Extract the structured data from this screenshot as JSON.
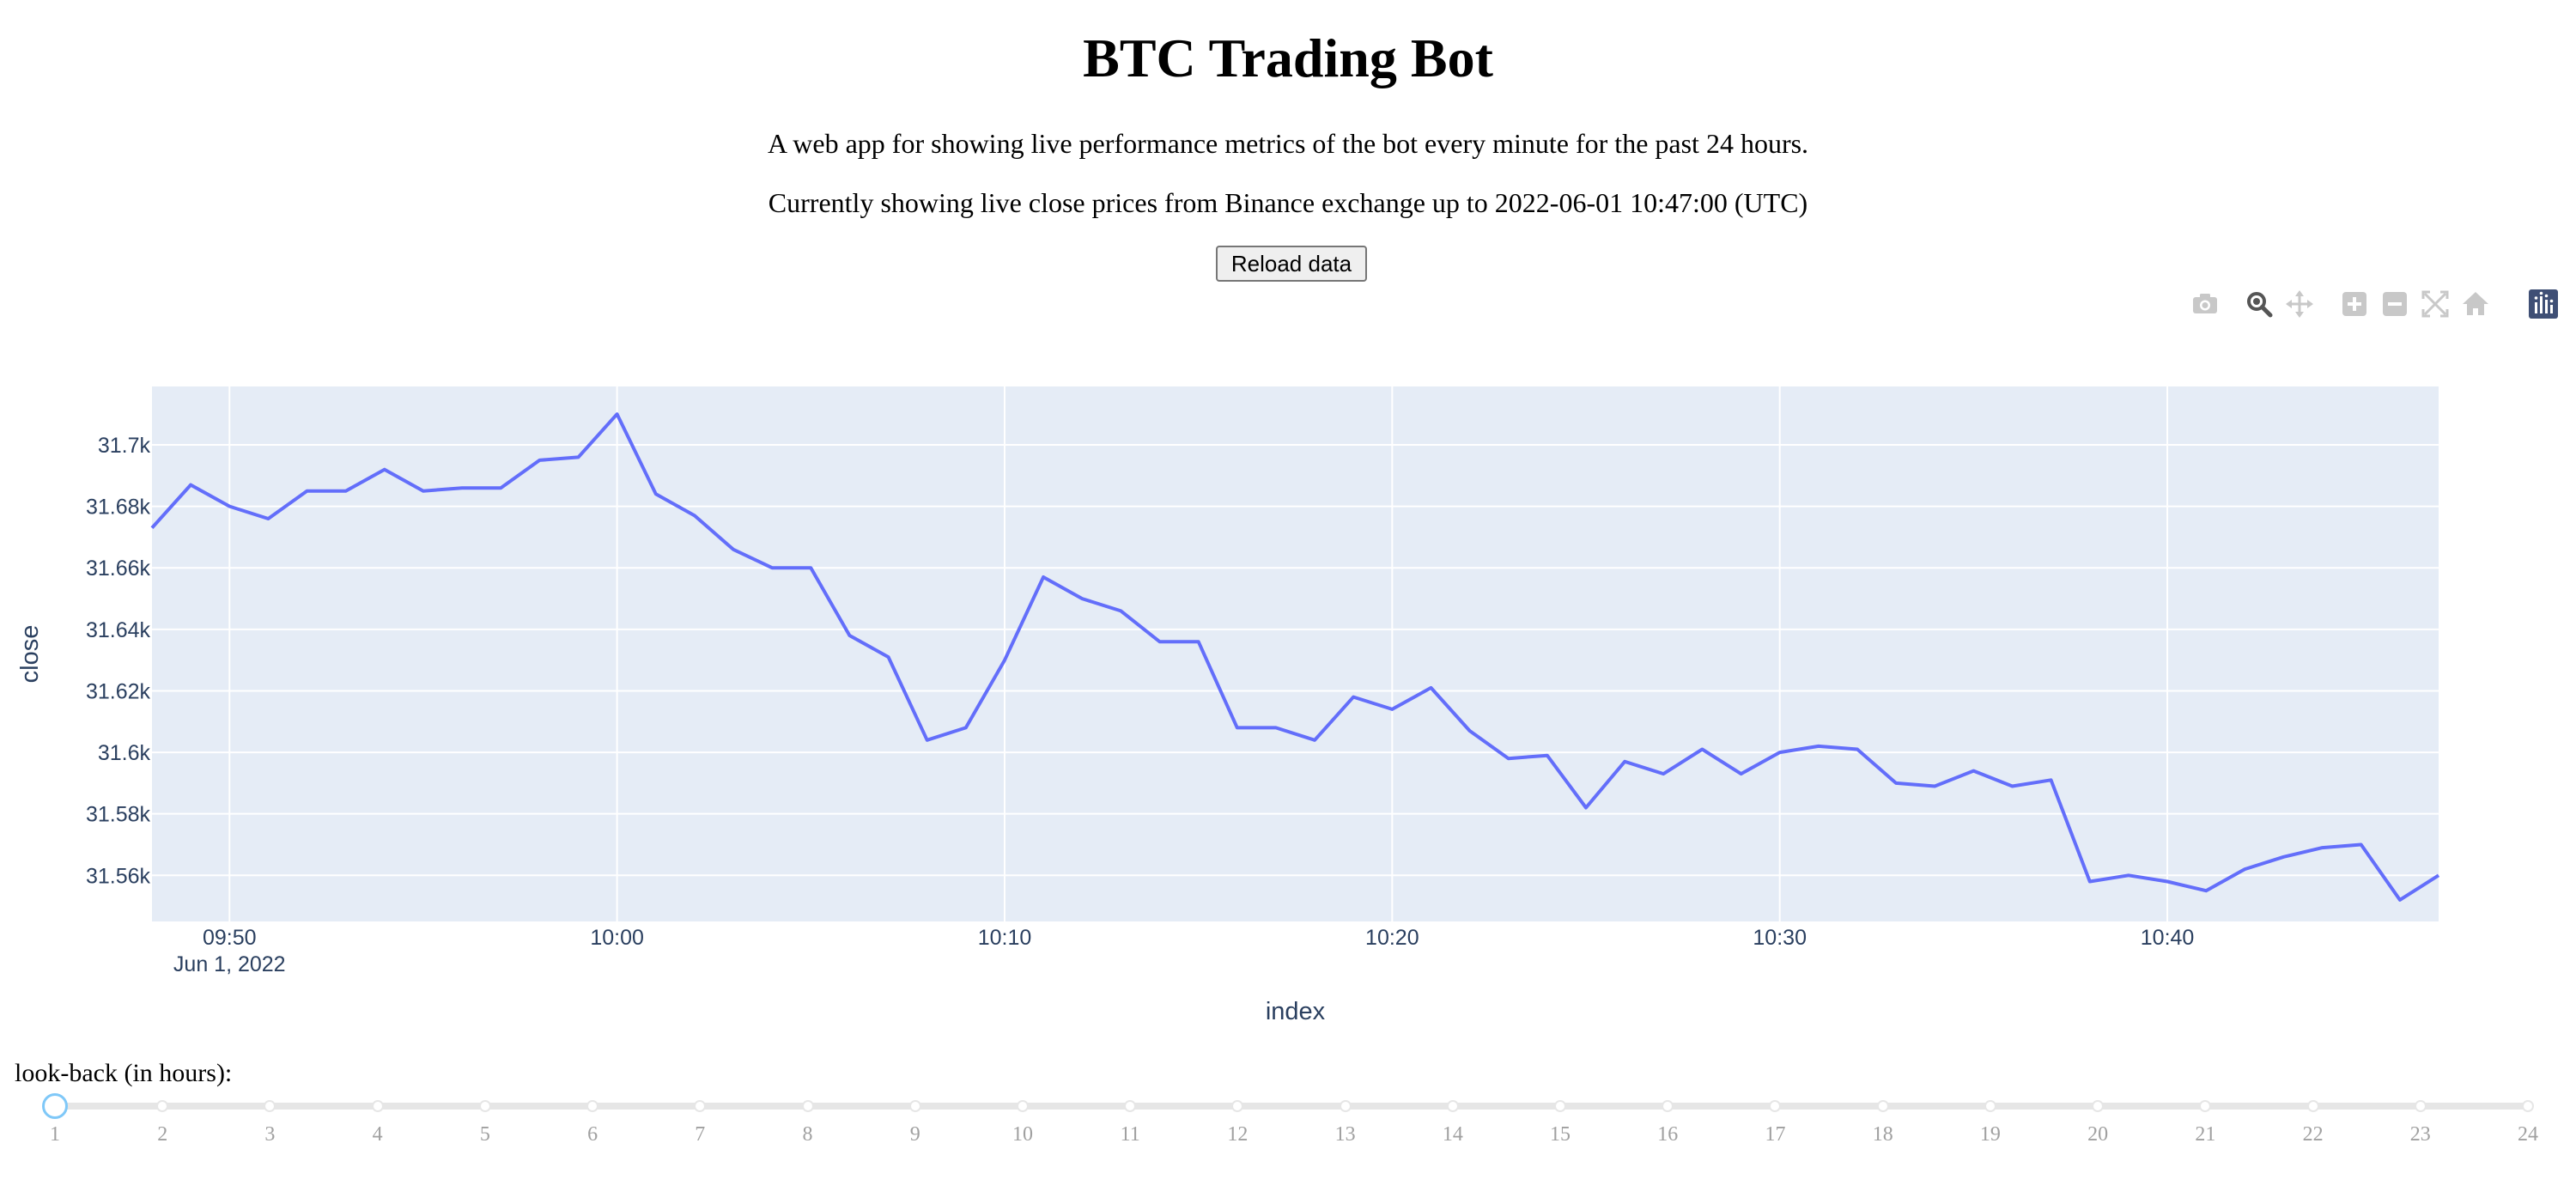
{
  "header": {
    "title": "BTC Trading Bot",
    "description": "A web app for showing live performance metrics of the bot every minute for the past 24 hours.",
    "status": "Currently showing live close prices from Binance exchange up to 2022-06-01 10:47:00 (UTC)",
    "reload_label": "Reload data"
  },
  "modebar": {
    "icons": [
      "camera-icon",
      "zoom-icon",
      "pan-icon",
      "zoom-in-icon",
      "zoom-out-icon",
      "autoscale-icon",
      "reset-axes-icon",
      "plotly-logo-icon"
    ],
    "active_icon": "zoom-icon"
  },
  "chart_data": {
    "type": "line",
    "xlabel": "index",
    "ylabel": "close",
    "date_label": "Jun 1, 2022",
    "line_color": "#636efa",
    "plot_bg": "#e5ecf6",
    "grid": true,
    "xlim": [
      "2022-06-01 09:48",
      "2022-06-01 10:47"
    ],
    "ylim": [
      31545,
      31719
    ],
    "x_ticks": [
      "09:50",
      "10:00",
      "10:10",
      "10:20",
      "10:30",
      "10:40"
    ],
    "y_ticks": [
      31560,
      31580,
      31600,
      31620,
      31640,
      31660,
      31680,
      31700
    ],
    "y_tick_labels": [
      "31.56k",
      "31.58k",
      "31.6k",
      "31.62k",
      "31.64k",
      "31.66k",
      "31.68k",
      "31.7k"
    ],
    "x": [
      "09:48",
      "09:49",
      "09:50",
      "09:51",
      "09:52",
      "09:53",
      "09:54",
      "09:55",
      "09:56",
      "09:57",
      "09:58",
      "09:59",
      "10:00",
      "10:01",
      "10:02",
      "10:03",
      "10:04",
      "10:05",
      "10:06",
      "10:07",
      "10:08",
      "10:09",
      "10:10",
      "10:11",
      "10:12",
      "10:13",
      "10:14",
      "10:15",
      "10:16",
      "10:17",
      "10:18",
      "10:19",
      "10:20",
      "10:21",
      "10:22",
      "10:23",
      "10:24",
      "10:25",
      "10:26",
      "10:27",
      "10:28",
      "10:29",
      "10:30",
      "10:31",
      "10:32",
      "10:33",
      "10:34",
      "10:35",
      "10:36",
      "10:37",
      "10:38",
      "10:39",
      "10:40",
      "10:41",
      "10:42",
      "10:43",
      "10:44",
      "10:45",
      "10:46",
      "10:47"
    ],
    "values": [
      31673,
      31687,
      31680,
      31676,
      31685,
      31685,
      31692,
      31685,
      31686,
      31686,
      31695,
      31696,
      31710,
      31684,
      31677,
      31666,
      31660,
      31660,
      31638,
      31631,
      31604,
      31608,
      31630,
      31657,
      31650,
      31646,
      31636,
      31636,
      31608,
      31608,
      31604,
      31618,
      31614,
      31621,
      31607,
      31598,
      31599,
      31582,
      31597,
      31593,
      31601,
      31593,
      31600,
      31602,
      31601,
      31590,
      31589,
      31594,
      31589,
      31591,
      31558,
      31560,
      31558,
      31555,
      31562,
      31566,
      31569,
      31570,
      31552,
      31560
    ]
  },
  "slider": {
    "label": "look-back (in hours):",
    "ticks": [
      "1",
      "2",
      "3",
      "4",
      "5",
      "6",
      "7",
      "8",
      "9",
      "10",
      "11",
      "12",
      "13",
      "14",
      "15",
      "16",
      "17",
      "18",
      "19",
      "20",
      "21",
      "22",
      "23",
      "24"
    ],
    "min": 1,
    "max": 24,
    "value": 1
  }
}
